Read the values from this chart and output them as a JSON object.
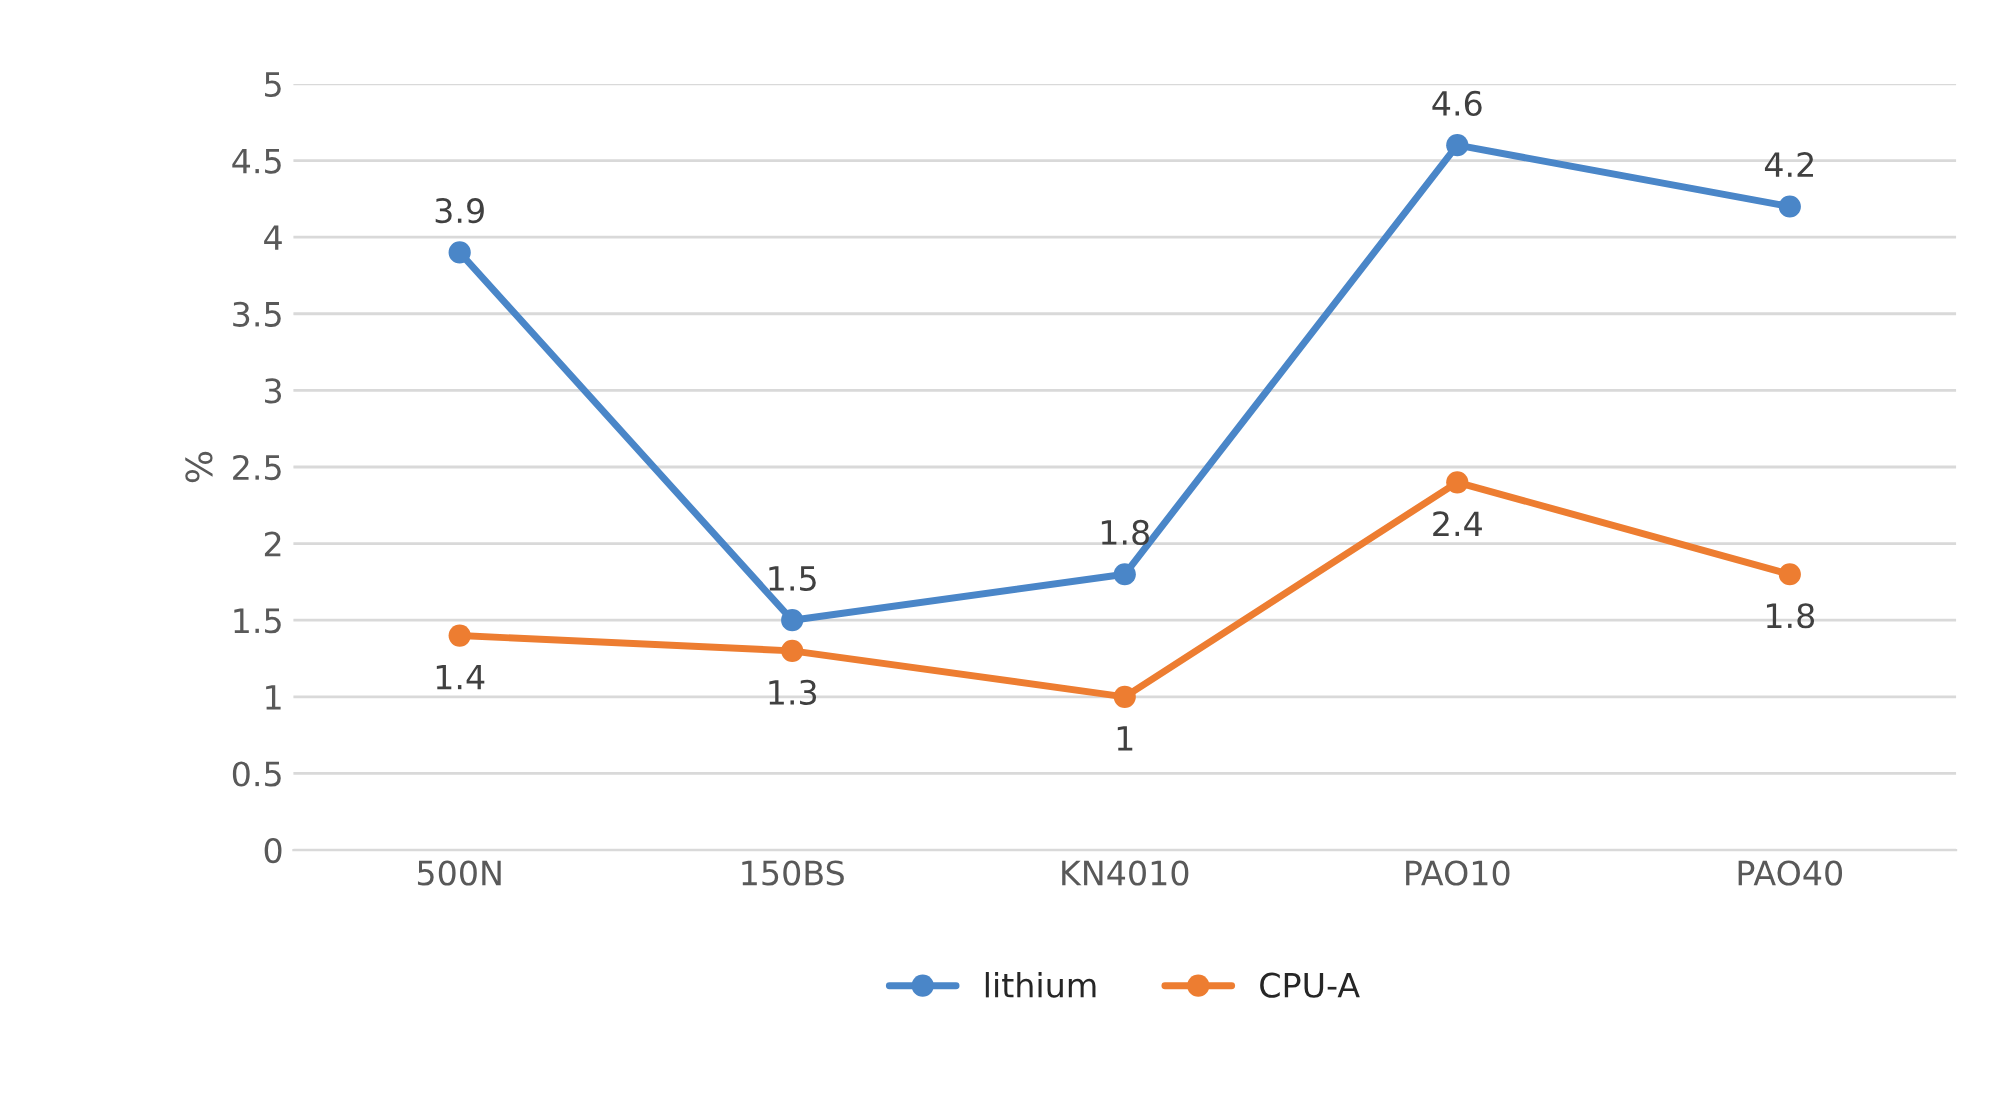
{
  "chart_data": {
    "type": "line",
    "ylabel": "%",
    "categories": [
      "500N",
      "150BS",
      "KN4010",
      "PAO10",
      "PAO40"
    ],
    "series": [
      {
        "name": "lithium",
        "color": "#4a86c8",
        "values": [
          3.9,
          1.5,
          1.8,
          4.6,
          4.2
        ]
      },
      {
        "name": "CPU-A",
        "color": "#ed7d31",
        "values": [
          1.4,
          1.3,
          1,
          2.4,
          1.8
        ]
      }
    ],
    "ylim": [
      0,
      5
    ],
    "yticks": [
      0,
      0.5,
      1,
      1.5,
      2,
      2.5,
      3,
      3.5,
      4,
      4.5,
      5
    ],
    "grid": "y",
    "legend": "bottom",
    "marker": "circle",
    "line_style": "solid",
    "data_labels": true
  }
}
